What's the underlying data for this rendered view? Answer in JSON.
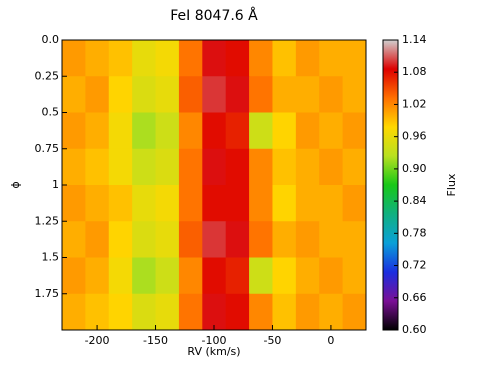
{
  "chart_data": {
    "type": "heatmap",
    "title": "FeI 8047.6 Å",
    "x_label": "RV (km/s)",
    "y_label": "ϕ",
    "colorbar_label": "Flux",
    "x": [
      -230,
      -210,
      -190,
      -170,
      -150,
      -130,
      -110,
      -90,
      -70,
      -50,
      -30,
      -10,
      10,
      30
    ],
    "y": [
      0,
      0.25,
      0.5,
      0.75,
      1,
      1.25,
      1.5,
      1.75,
      2
    ],
    "z": [
      [
        1.01,
        1.0,
        0.99,
        0.96,
        0.97,
        1.03,
        1.09,
        1.08,
        1.02,
        0.99,
        1.01,
        1.0,
        1.0
      ],
      [
        1.0,
        1.01,
        0.98,
        0.95,
        0.96,
        1.04,
        1.1,
        1.09,
        1.03,
        1.0,
        1.0,
        1.01,
        1.0
      ],
      [
        1.01,
        1.0,
        0.97,
        0.92,
        0.94,
        1.02,
        1.08,
        1.07,
        0.94,
        0.98,
        1.01,
        1.0,
        1.01
      ],
      [
        1.0,
        0.99,
        0.97,
        0.94,
        0.95,
        1.03,
        1.09,
        1.08,
        1.02,
        0.99,
        1.0,
        1.01,
        1.0
      ],
      [
        1.01,
        1.0,
        0.99,
        0.96,
        0.97,
        1.03,
        1.08,
        1.08,
        1.02,
        0.98,
        1.0,
        1.0,
        1.01
      ],
      [
        1.0,
        1.01,
        0.98,
        0.95,
        0.96,
        1.04,
        1.1,
        1.09,
        1.03,
        1.0,
        1.01,
        1.0,
        1.0
      ],
      [
        1.01,
        1.0,
        0.97,
        0.92,
        0.94,
        1.02,
        1.08,
        1.07,
        0.94,
        0.98,
        1.0,
        1.01,
        1.0
      ],
      [
        1.0,
        0.99,
        0.98,
        0.95,
        0.96,
        1.03,
        1.09,
        1.08,
        1.02,
        0.99,
        1.01,
        1.0,
        1.01
      ]
    ],
    "xlim": [
      -230,
      30
    ],
    "ylim": [
      0,
      2
    ],
    "zlim": [
      0.6,
      1.14
    ],
    "xticks": [
      -200,
      -150,
      -100,
      -50,
      0
    ],
    "yticks": [
      {
        "value": 0,
        "label": "0.0"
      },
      0.25,
      0.5,
      0.75,
      1,
      1.25,
      1.5,
      1.75
    ],
    "zticks": [
      {
        "value": 0.6,
        "label": "0.60"
      },
      0.66,
      0.72,
      0.78,
      0.84,
      {
        "value": 0.9,
        "label": "0.90"
      },
      0.96,
      1.02,
      1.08,
      1.14
    ],
    "colormap": [
      "#000000",
      "#7b0f96",
      "#1a2ee0",
      "#0aa0d8",
      "#10b080",
      "#18c818",
      "#b8e020",
      "#ffd800",
      "#ff7000",
      "#dd0000",
      "#d0d0d0"
    ]
  }
}
